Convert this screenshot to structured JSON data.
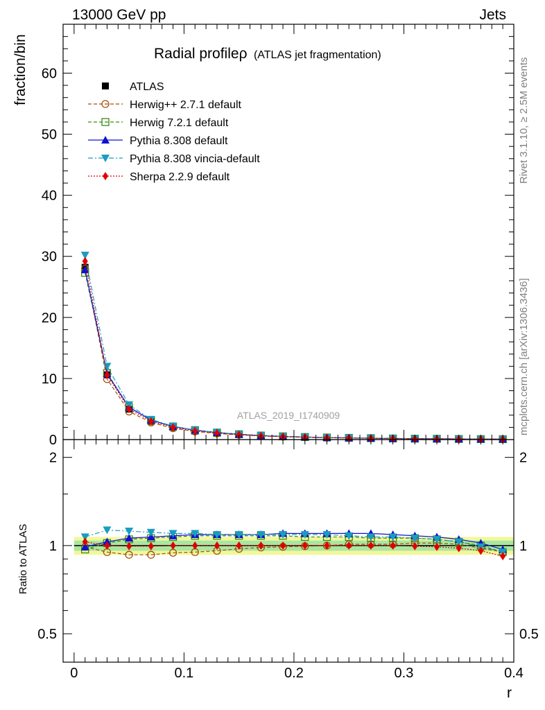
{
  "header": {
    "left": "13000 GeV pp",
    "right": "Jets"
  },
  "side_labels": {
    "rivet": "Rivet 3.1.10, ≥ 2.5M events",
    "mcplots": "mcplots.cern.ch [arXiv:1306.3436]"
  },
  "watermark": "ATLAS_2019_I1740909",
  "chart_data": [
    {
      "type": "line",
      "title": "Radial profileρ (ATLAS jet fragmentation)",
      "title_main": "Radial profileρ",
      "title_sub": "(ATLAS jet fragmentation)",
      "xlabel": "",
      "ylabel": "fraction/bin",
      "xlim": [
        -0.01,
        0.4
      ],
      "ylim": [
        0,
        68
      ],
      "y_ticks": [
        0,
        10,
        20,
        30,
        40,
        50,
        60
      ],
      "y_tick_labels": [
        "0",
        "10",
        "20",
        "30",
        "40",
        "50",
        "60"
      ],
      "grid": false,
      "legend_position": "top-left",
      "x": [
        0.01,
        0.03,
        0.05,
        0.07,
        0.09,
        0.11,
        0.13,
        0.15,
        0.17,
        0.19,
        0.21,
        0.23,
        0.25,
        0.27,
        0.29,
        0.31,
        0.33,
        0.35,
        0.37,
        0.39
      ],
      "series": [
        {
          "name": "ATLAS",
          "color": "#000000",
          "marker": "square-filled",
          "line": "none",
          "values": [
            28.2,
            10.6,
            5.0,
            3.0,
            2.0,
            1.4,
            1.05,
            0.8,
            0.6,
            0.48,
            0.38,
            0.31,
            0.26,
            0.21,
            0.17,
            0.14,
            0.12,
            0.1,
            0.08,
            0.07
          ]
        },
        {
          "name": "Herwig++ 2.7.1 default",
          "color": "#a0520a",
          "marker": "circle-open",
          "line": "dashed",
          "values": [
            28.0,
            9.9,
            4.6,
            2.8,
            1.86,
            1.33,
            1.0,
            0.78,
            0.59,
            0.47,
            0.38,
            0.31,
            0.26,
            0.21,
            0.17,
            0.14,
            0.12,
            0.1,
            0.08,
            0.07
          ]
        },
        {
          "name": "Herwig 7.2.1 default",
          "color": "#3a8a12",
          "marker": "square-open",
          "line": "dashed",
          "values": [
            27.3,
            10.9,
            5.3,
            3.2,
            2.15,
            1.55,
            1.15,
            0.88,
            0.66,
            0.53,
            0.42,
            0.34,
            0.28,
            0.23,
            0.18,
            0.15,
            0.13,
            0.1,
            0.08,
            0.07
          ]
        },
        {
          "name": "Pythia 8.308 default",
          "color": "#1010d0",
          "marker": "triangle-up",
          "line": "solid",
          "values": [
            27.8,
            10.8,
            5.3,
            3.2,
            2.15,
            1.55,
            1.15,
            0.88,
            0.66,
            0.53,
            0.42,
            0.34,
            0.28,
            0.23,
            0.18,
            0.15,
            0.13,
            0.1,
            0.08,
            0.07
          ]
        },
        {
          "name": "Pythia 8.308 vincia-default",
          "color": "#1a9cc0",
          "marker": "triangle-down",
          "line": "dashdot",
          "values": [
            30.2,
            12.0,
            5.7,
            3.3,
            2.2,
            1.56,
            1.16,
            0.88,
            0.66,
            0.53,
            0.42,
            0.34,
            0.28,
            0.23,
            0.18,
            0.15,
            0.13,
            0.1,
            0.08,
            0.07
          ]
        },
        {
          "name": "Sherpa 2.2.9 default",
          "color": "#e00000",
          "marker": "diamond",
          "line": "dotted",
          "values": [
            29.2,
            10.6,
            5.0,
            3.0,
            2.0,
            1.4,
            1.05,
            0.8,
            0.6,
            0.48,
            0.38,
            0.31,
            0.26,
            0.21,
            0.17,
            0.14,
            0.12,
            0.1,
            0.08,
            0.07
          ]
        }
      ]
    },
    {
      "type": "line",
      "title": "",
      "xlabel": "r",
      "ylabel": "Ratio to ATLAS",
      "xlim": [
        -0.01,
        0.4
      ],
      "ylim": [
        0.4,
        2.3
      ],
      "y_scale": "log",
      "y_ticks": [
        0.5,
        1,
        2
      ],
      "y_tick_labels": [
        "0.5",
        "1",
        "2"
      ],
      "x_ticks": [
        0,
        0.1,
        0.2,
        0.3,
        0.4
      ],
      "x_tick_labels": [
        "0",
        "0.1",
        "0.2",
        "0.3",
        "0.4"
      ],
      "grid": false,
      "x": [
        0.01,
        0.03,
        0.05,
        0.07,
        0.09,
        0.11,
        0.13,
        0.15,
        0.17,
        0.19,
        0.21,
        0.23,
        0.25,
        0.27,
        0.29,
        0.31,
        0.33,
        0.35,
        0.37,
        0.39
      ],
      "band_inner": [
        0.96,
        1.04
      ],
      "band_outer": [
        0.93,
        1.07
      ],
      "series": [
        {
          "name": "Herwig++ 2.7.1 default",
          "color": "#a0520a",
          "marker": "circle-open",
          "line": "dashed",
          "values": [
            0.99,
            0.95,
            0.93,
            0.93,
            0.945,
            0.95,
            0.96,
            0.975,
            0.985,
            0.99,
            0.995,
            1.0,
            1.01,
            1.01,
            1.01,
            1.02,
            1.02,
            1.01,
            0.98,
            0.95
          ]
        },
        {
          "name": "Herwig 7.2.1 default",
          "color": "#3a8a12",
          "marker": "square-open",
          "line": "dashed",
          "values": [
            0.97,
            1.02,
            1.05,
            1.06,
            1.07,
            1.08,
            1.08,
            1.08,
            1.08,
            1.08,
            1.07,
            1.07,
            1.07,
            1.06,
            1.06,
            1.06,
            1.05,
            1.03,
            1.0,
            0.95
          ]
        },
        {
          "name": "Pythia 8.308 default",
          "color": "#1010d0",
          "marker": "triangle-up",
          "line": "solid",
          "values": [
            0.99,
            1.03,
            1.06,
            1.07,
            1.08,
            1.09,
            1.09,
            1.09,
            1.09,
            1.1,
            1.1,
            1.1,
            1.1,
            1.1,
            1.09,
            1.08,
            1.07,
            1.05,
            1.02,
            0.97
          ]
        },
        {
          "name": "Pythia 8.308 vincia-default",
          "color": "#1a9cc0",
          "marker": "triangle-down",
          "line": "dashdot",
          "values": [
            1.07,
            1.13,
            1.12,
            1.11,
            1.1,
            1.1,
            1.09,
            1.09,
            1.09,
            1.09,
            1.09,
            1.09,
            1.08,
            1.07,
            1.07,
            1.06,
            1.05,
            1.03,
            0.99,
            0.95
          ]
        },
        {
          "name": "Sherpa 2.2.9 default",
          "color": "#e00000",
          "marker": "diamond",
          "line": "dotted",
          "values": [
            1.03,
            1.0,
            0.995,
            0.995,
            1.0,
            1.0,
            1.0,
            1.0,
            1.0,
            1.0,
            1.0,
            1.0,
            1.0,
            1.0,
            1.0,
            0.995,
            0.99,
            0.98,
            0.96,
            0.92
          ]
        }
      ]
    }
  ]
}
